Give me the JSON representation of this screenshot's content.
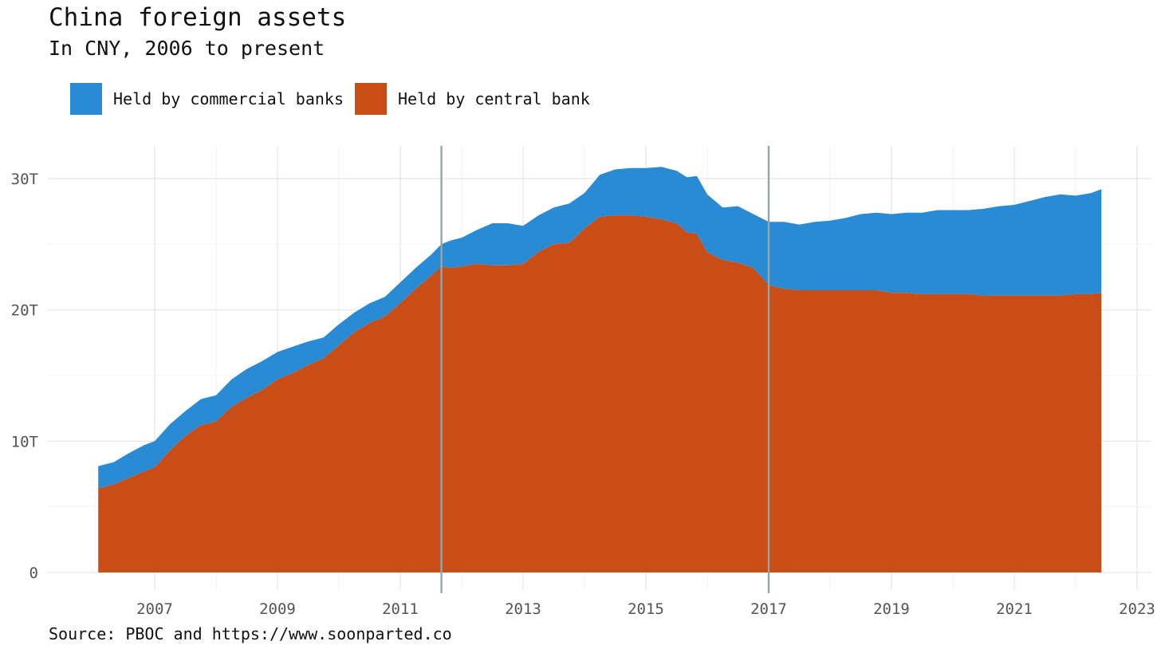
{
  "chart_data": {
    "type": "area",
    "title": "China foreign assets",
    "subtitle": "In CNY, 2006 to present",
    "source": "Source: PBOC and https://www.soonparted.co",
    "xlim": [
      2006.1,
      2023
    ],
    "ylim": [
      0,
      30
    ],
    "x_ticks": [
      2007,
      2009,
      2011,
      2013,
      2015,
      2017,
      2019,
      2021,
      2023
    ],
    "x_tick_labels": [
      "2007",
      "2009",
      "2011",
      "2013",
      "2015",
      "2017",
      "2019",
      "2021",
      "2023"
    ],
    "y_ticks": [
      0,
      10,
      20,
      30
    ],
    "y_tick_labels": [
      "0",
      "10T",
      "20T",
      "30T"
    ],
    "y_unit": "trillion CNY",
    "grid": true,
    "legend_position": "top-left",
    "stacked": true,
    "vlines": [
      2011.67,
      2017.0
    ],
    "x": [
      2006.08,
      2006.33,
      2006.58,
      2006.83,
      2007.0,
      2007.25,
      2007.5,
      2007.75,
      2008.0,
      2008.25,
      2008.5,
      2008.75,
      2009.0,
      2009.25,
      2009.5,
      2009.75,
      2010.0,
      2010.25,
      2010.5,
      2010.75,
      2011.0,
      2011.25,
      2011.5,
      2011.67,
      2011.83,
      2012.0,
      2012.25,
      2012.5,
      2012.75,
      2013.0,
      2013.25,
      2013.5,
      2013.75,
      2014.0,
      2014.25,
      2014.5,
      2014.75,
      2015.0,
      2015.25,
      2015.5,
      2015.67,
      2015.83,
      2016.0,
      2016.25,
      2016.5,
      2016.75,
      2017.0,
      2017.25,
      2017.5,
      2017.75,
      2018.0,
      2018.25,
      2018.5,
      2018.75,
      2019.0,
      2019.25,
      2019.5,
      2019.75,
      2020.0,
      2020.25,
      2020.5,
      2020.75,
      2021.0,
      2021.25,
      2021.5,
      2021.75,
      2022.0,
      2022.25,
      2022.42
    ],
    "series": [
      {
        "name": "Held by commercial banks",
        "color": "#2a8bd5",
        "values": [
          1.7,
          1.7,
          1.9,
          2.0,
          2.0,
          2.0,
          1.9,
          2.0,
          2.0,
          2.1,
          2.2,
          2.2,
          2.1,
          2.0,
          1.8,
          1.6,
          1.6,
          1.5,
          1.5,
          1.5,
          1.6,
          1.6,
          1.6,
          1.7,
          2.1,
          2.2,
          2.6,
          3.2,
          3.2,
          2.9,
          2.8,
          2.8,
          3.0,
          2.7,
          3.2,
          3.5,
          3.6,
          3.7,
          4.0,
          4.0,
          4.2,
          4.4,
          4.4,
          4.0,
          4.3,
          4.1,
          4.8,
          5.1,
          5.0,
          5.2,
          5.3,
          5.5,
          5.8,
          5.9,
          6.0,
          6.1,
          6.2,
          6.4,
          6.4,
          6.4,
          6.6,
          6.8,
          6.9,
          7.2,
          7.5,
          7.7,
          7.5,
          7.7,
          7.9
        ]
      },
      {
        "name": "Held by central bank",
        "color": "#c84d17",
        "values": [
          6.4,
          6.7,
          7.2,
          7.7,
          8.0,
          9.3,
          10.4,
          11.2,
          11.5,
          12.6,
          13.3,
          13.9,
          14.7,
          15.2,
          15.8,
          16.3,
          17.3,
          18.3,
          19.0,
          19.5,
          20.5,
          21.6,
          22.6,
          23.3,
          23.2,
          23.3,
          23.5,
          23.4,
          23.4,
          23.5,
          24.4,
          25.0,
          25.1,
          26.2,
          27.1,
          27.2,
          27.2,
          27.1,
          26.9,
          26.6,
          25.9,
          25.8,
          24.4,
          23.8,
          23.6,
          23.2,
          21.9,
          21.6,
          21.5,
          21.5,
          21.5,
          21.5,
          21.5,
          21.5,
          21.3,
          21.3,
          21.2,
          21.2,
          21.2,
          21.2,
          21.1,
          21.1,
          21.1,
          21.1,
          21.1,
          21.1,
          21.2,
          21.2,
          21.3
        ]
      }
    ]
  }
}
